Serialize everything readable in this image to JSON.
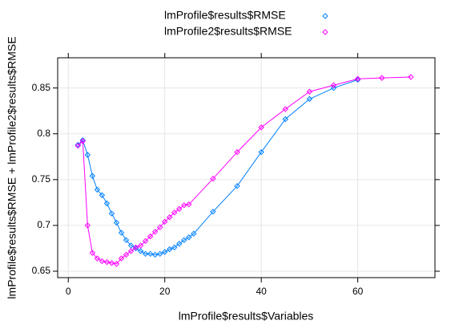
{
  "chart_data": {
    "type": "line",
    "x_label": "lmProfile$results$Variables",
    "y_label": "lmProfile$results$RMSE + lmProfile2$results$RMSE",
    "xlim": [
      -2.2,
      76
    ],
    "ylim": [
      0.643,
      0.883
    ],
    "xticks": [
      0,
      20,
      40,
      60
    ],
    "yticks": [
      0.65,
      0.7,
      0.75,
      0.8,
      0.85
    ],
    "grid": true,
    "legend": "top",
    "series": [
      {
        "name": "lmProfile$results$RMSE",
        "color": "#0080ff",
        "x": [
          2,
          3,
          4,
          5,
          6,
          7,
          8,
          9,
          10,
          11,
          12,
          13,
          14,
          15,
          16,
          17,
          18,
          19,
          20,
          21,
          22,
          23,
          24,
          25,
          26,
          30,
          35,
          40,
          45,
          50,
          55,
          60
        ],
        "values": [
          0.788,
          0.793,
          0.777,
          0.754,
          0.739,
          0.733,
          0.724,
          0.713,
          0.703,
          0.692,
          0.684,
          0.678,
          0.675,
          0.672,
          0.669,
          0.669,
          0.668,
          0.669,
          0.671,
          0.674,
          0.676,
          0.68,
          0.684,
          0.687,
          0.691,
          0.715,
          0.743,
          0.78,
          0.816,
          0.838,
          0.85,
          0.859
        ]
      },
      {
        "name": "lmProfile2$results$RMSE",
        "color": "#ff00ff",
        "x": [
          2,
          3,
          4,
          5,
          6,
          7,
          8,
          9,
          10,
          11,
          12,
          13,
          14,
          15,
          16,
          17,
          18,
          19,
          20,
          21,
          22,
          23,
          24,
          25,
          30,
          35,
          40,
          45,
          50,
          55,
          60,
          65,
          71
        ],
        "values": [
          0.787,
          0.792,
          0.7,
          0.67,
          0.664,
          0.661,
          0.66,
          0.659,
          0.658,
          0.664,
          0.668,
          0.672,
          0.676,
          0.678,
          0.683,
          0.688,
          0.693,
          0.698,
          0.704,
          0.709,
          0.714,
          0.718,
          0.722,
          0.723,
          0.751,
          0.78,
          0.807,
          0.827,
          0.846,
          0.853,
          0.86,
          0.861,
          0.862
        ]
      }
    ]
  }
}
